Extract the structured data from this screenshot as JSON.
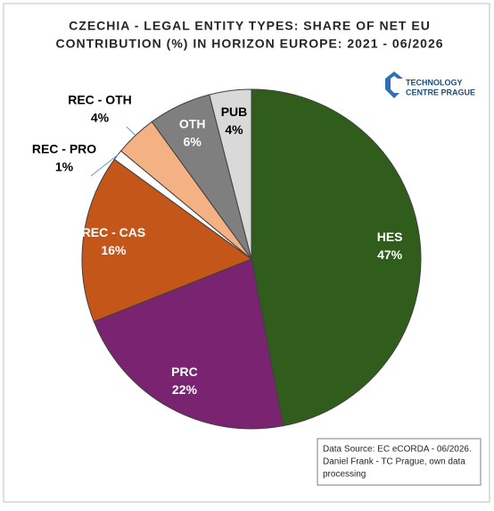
{
  "chart_data": {
    "type": "pie",
    "title_lines": [
      "CZECHIA - LEGAL ENTITY TYPES: SHARE OF NET EU",
      "CONTRIBUTION (%) IN HORIZON EUROPE: 2021  - 06/2026"
    ],
    "logo_lines": [
      "TECHNOLOGY",
      "CENTRE PRAGUE"
    ],
    "source_lines": [
      "Data Source: EC eCORDA - 06/2026.",
      "Daniel Frank - TC Prague, own data",
      "processing"
    ],
    "categories": [
      "HES",
      "PRC",
      "REC - CAS",
      "REC - PRO",
      "REC - OTH",
      "OTH",
      "PUB"
    ],
    "values": [
      47,
      22,
      16,
      1,
      4,
      6,
      4
    ],
    "value_labels": [
      "47%",
      "22%",
      "16%",
      "1%",
      "4%",
      "6%",
      "4%"
    ],
    "colors": [
      "#305d1c",
      "#7a2370",
      "#c4561a",
      "#ffffff",
      "#f4b183",
      "#7f7f7f",
      "#d9d9d9"
    ]
  }
}
